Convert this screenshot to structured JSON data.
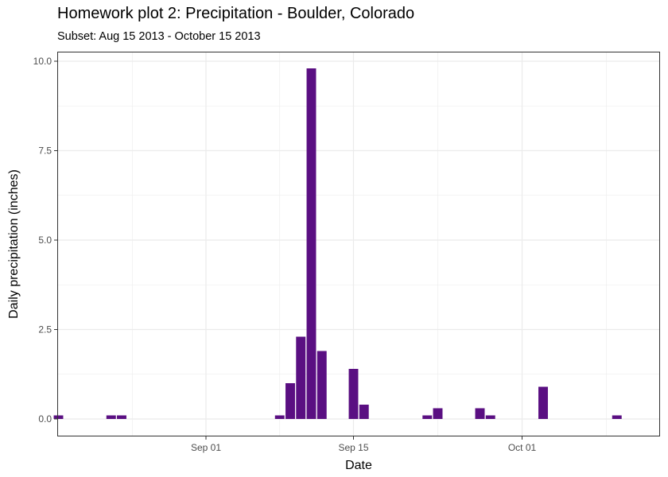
{
  "chart_data": {
    "type": "bar",
    "title": "Homework plot 2: Precipitation - Boulder, Colorado",
    "subtitle": "Subset: Aug 15 2013 - October 15 2013",
    "xlabel": "Date",
    "ylabel": "Daily precipitation (inches)",
    "xlim": [
      "2013-08-15",
      "2013-10-15"
    ],
    "ylim": [
      0,
      10
    ],
    "x_ticks": [
      {
        "date": "2013-09-01",
        "label": "Sep 01"
      },
      {
        "date": "2013-09-15",
        "label": "Sep 15"
      },
      {
        "date": "2013-10-01",
        "label": "Oct 01"
      }
    ],
    "y_ticks": [
      {
        "value": 0,
        "label": "0.0"
      },
      {
        "value": 2.5,
        "label": "2.5"
      },
      {
        "value": 5,
        "label": "5.0"
      },
      {
        "value": 7.5,
        "label": "7.5"
      },
      {
        "value": 10,
        "label": "10.0"
      }
    ],
    "bar_color": "#5a0f82",
    "grid": true,
    "series": [
      {
        "points": [
          {
            "date": "2013-08-18",
            "value": 0.1
          },
          {
            "date": "2013-08-23",
            "value": 0.1
          },
          {
            "date": "2013-08-24",
            "value": 0.1
          },
          {
            "date": "2013-09-08",
            "value": 0.1
          },
          {
            "date": "2013-09-09",
            "value": 1.0
          },
          {
            "date": "2013-09-10",
            "value": 2.3
          },
          {
            "date": "2013-09-11",
            "value": 9.8
          },
          {
            "date": "2013-09-12",
            "value": 1.9
          },
          {
            "date": "2013-09-15",
            "value": 1.4
          },
          {
            "date": "2013-09-16",
            "value": 0.4
          },
          {
            "date": "2013-09-22",
            "value": 0.1
          },
          {
            "date": "2013-09-23",
            "value": 0.3
          },
          {
            "date": "2013-09-27",
            "value": 0.3
          },
          {
            "date": "2013-09-28",
            "value": 0.1
          },
          {
            "date": "2013-10-03",
            "value": 0.9
          },
          {
            "date": "2013-10-10",
            "value": 0.1
          }
        ]
      }
    ]
  }
}
